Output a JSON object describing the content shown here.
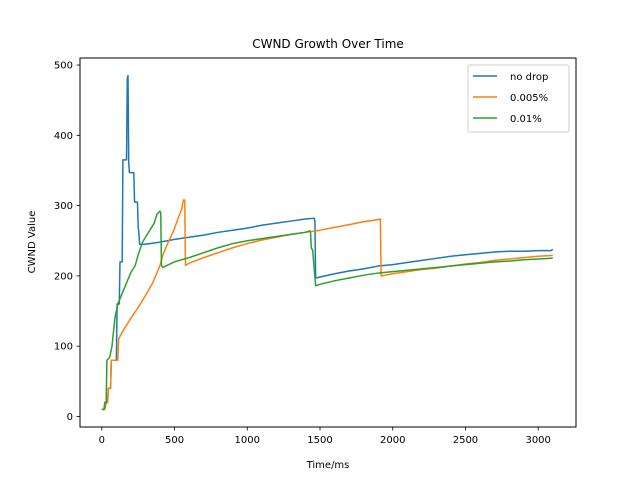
{
  "chart_data": {
    "type": "line",
    "title": "CWND Growth Over Time",
    "xlabel": "Time/ms",
    "ylabel": "CWND Value",
    "xlim": [
      -150,
      3260
    ],
    "ylim": [
      -15,
      510
    ],
    "xticks": [
      0,
      500,
      1000,
      1500,
      2000,
      2500,
      3000
    ],
    "yticks": [
      0,
      100,
      200,
      300,
      400,
      500
    ],
    "grid": false,
    "legend_position": "top-right",
    "series": [
      {
        "name": "no drop",
        "color": "#1f77b4",
        "points": [
          [
            0,
            10
          ],
          [
            20,
            10
          ],
          [
            30,
            20
          ],
          [
            40,
            20
          ],
          [
            45,
            40
          ],
          [
            60,
            40
          ],
          [
            65,
            80
          ],
          [
            100,
            80
          ],
          [
            105,
            160
          ],
          [
            120,
            160
          ],
          [
            125,
            220
          ],
          [
            140,
            220
          ],
          [
            145,
            365
          ],
          [
            170,
            365
          ],
          [
            175,
            480
          ],
          [
            180,
            485
          ],
          [
            185,
            360
          ],
          [
            190,
            347
          ],
          [
            220,
            347
          ],
          [
            225,
            305
          ],
          [
            245,
            305
          ],
          [
            250,
            270
          ],
          [
            255,
            260
          ],
          [
            260,
            245
          ],
          [
            300,
            245
          ],
          [
            400,
            248
          ],
          [
            500,
            252
          ],
          [
            600,
            255
          ],
          [
            700,
            258
          ],
          [
            800,
            262
          ],
          [
            900,
            265
          ],
          [
            1000,
            268
          ],
          [
            1100,
            272
          ],
          [
            1200,
            275
          ],
          [
            1300,
            278
          ],
          [
            1400,
            281
          ],
          [
            1460,
            282
          ],
          [
            1465,
            278
          ],
          [
            1470,
            197
          ],
          [
            1600,
            203
          ],
          [
            1700,
            207
          ],
          [
            1800,
            210
          ],
          [
            1900,
            214
          ],
          [
            2000,
            216
          ],
          [
            2100,
            219
          ],
          [
            2200,
            222
          ],
          [
            2300,
            225
          ],
          [
            2400,
            228
          ],
          [
            2500,
            230
          ],
          [
            2600,
            232
          ],
          [
            2700,
            234
          ],
          [
            2800,
            235
          ],
          [
            2900,
            235
          ],
          [
            3000,
            236
          ],
          [
            3090,
            236
          ],
          [
            3100,
            238
          ]
        ]
      },
      {
        "name": "0.005%",
        "color": "#ff7f0e",
        "points": [
          [
            0,
            10
          ],
          [
            20,
            10
          ],
          [
            25,
            20
          ],
          [
            40,
            20
          ],
          [
            45,
            40
          ],
          [
            60,
            40
          ],
          [
            65,
            80
          ],
          [
            110,
            80
          ],
          [
            115,
            110
          ],
          [
            140,
            120
          ],
          [
            170,
            130
          ],
          [
            200,
            140
          ],
          [
            250,
            155
          ],
          [
            300,
            172
          ],
          [
            350,
            190
          ],
          [
            380,
            205
          ],
          [
            400,
            215
          ],
          [
            420,
            230
          ],
          [
            450,
            245
          ],
          [
            480,
            258
          ],
          [
            500,
            268
          ],
          [
            530,
            285
          ],
          [
            550,
            295
          ],
          [
            560,
            308
          ],
          [
            570,
            308
          ],
          [
            575,
            215
          ],
          [
            600,
            218
          ],
          [
            700,
            226
          ],
          [
            800,
            233
          ],
          [
            900,
            240
          ],
          [
            1000,
            246
          ],
          [
            1100,
            251
          ],
          [
            1200,
            255
          ],
          [
            1300,
            259
          ],
          [
            1400,
            262
          ],
          [
            1500,
            265
          ],
          [
            1600,
            269
          ],
          [
            1700,
            273
          ],
          [
            1800,
            277
          ],
          [
            1900,
            280
          ],
          [
            1915,
            281
          ],
          [
            1920,
            200
          ],
          [
            2000,
            203
          ],
          [
            2100,
            206
          ],
          [
            2200,
            209
          ],
          [
            2300,
            211
          ],
          [
            2400,
            214
          ],
          [
            2500,
            217
          ],
          [
            2600,
            219
          ],
          [
            2700,
            222
          ],
          [
            2800,
            224
          ],
          [
            2900,
            226
          ],
          [
            3000,
            228
          ],
          [
            3090,
            229
          ],
          [
            3100,
            230
          ]
        ]
      },
      {
        "name": "0.01%",
        "color": "#2ca02c",
        "points": [
          [
            0,
            10
          ],
          [
            15,
            10
          ],
          [
            20,
            20
          ],
          [
            30,
            20
          ],
          [
            35,
            80
          ],
          [
            50,
            83
          ],
          [
            55,
            85
          ],
          [
            70,
            100
          ],
          [
            90,
            140
          ],
          [
            100,
            150
          ],
          [
            110,
            160
          ],
          [
            130,
            170
          ],
          [
            150,
            180
          ],
          [
            170,
            190
          ],
          [
            190,
            200
          ],
          [
            200,
            205
          ],
          [
            230,
            215
          ],
          [
            250,
            230
          ],
          [
            280,
            248
          ],
          [
            300,
            255
          ],
          [
            330,
            265
          ],
          [
            360,
            275
          ],
          [
            380,
            288
          ],
          [
            390,
            290
          ],
          [
            400,
            292
          ],
          [
            405,
            290
          ],
          [
            410,
            215
          ],
          [
            420,
            212
          ],
          [
            450,
            215
          ],
          [
            500,
            220
          ],
          [
            600,
            226
          ],
          [
            700,
            233
          ],
          [
            800,
            240
          ],
          [
            900,
            246
          ],
          [
            1000,
            250
          ],
          [
            1100,
            253
          ],
          [
            1200,
            256
          ],
          [
            1300,
            259
          ],
          [
            1400,
            262
          ],
          [
            1430,
            264
          ],
          [
            1435,
            262
          ],
          [
            1440,
            240
          ],
          [
            1450,
            236
          ],
          [
            1460,
            210
          ],
          [
            1470,
            186
          ],
          [
            1500,
            188
          ],
          [
            1600,
            193
          ],
          [
            1700,
            197
          ],
          [
            1800,
            201
          ],
          [
            1900,
            204
          ],
          [
            2000,
            206
          ],
          [
            2100,
            208
          ],
          [
            2200,
            210
          ],
          [
            2300,
            212
          ],
          [
            2400,
            214
          ],
          [
            2500,
            216
          ],
          [
            2600,
            218
          ],
          [
            2700,
            220
          ],
          [
            2800,
            221
          ],
          [
            2900,
            223
          ],
          [
            3000,
            224
          ],
          [
            3090,
            225
          ],
          [
            3100,
            226
          ]
        ]
      }
    ]
  }
}
